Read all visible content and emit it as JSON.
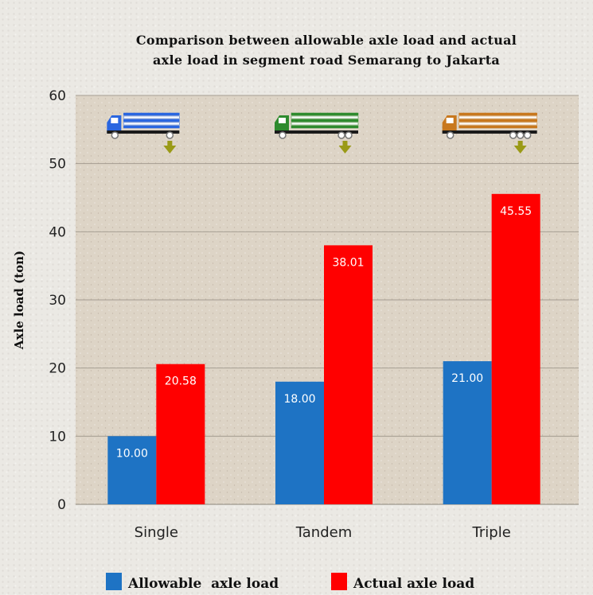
{
  "chart_data": {
    "type": "bar",
    "title": "Comparison between allowable axle load and actual\naxle load in segment road Semarang to Jakarta",
    "xlabel": "",
    "ylabel": "Axle load (ton)",
    "categories": [
      "Single",
      "Tandem",
      "Triple"
    ],
    "series": [
      {
        "name": "Allowable  axle load",
        "values": [
          10.0,
          18.0,
          21.0
        ],
        "value_labels": [
          "10.00",
          "18.00",
          "21.00"
        ],
        "color": "#1e73c4"
      },
      {
        "name": "Actual axle load",
        "values": [
          20.58,
          38.01,
          45.55
        ],
        "value_labels": [
          "20.58",
          "38.01",
          "45.55"
        ],
        "color": "#ff0000"
      }
    ],
    "ylim": [
      0,
      60
    ],
    "yticks": [
      0,
      10,
      20,
      30,
      40,
      50,
      60
    ],
    "grid": true,
    "legend_position": "bottom",
    "category_icons": [
      {
        "category": "Single",
        "icon": "single-axle-truck-icon",
        "color": "#2a66e0"
      },
      {
        "category": "Tandem",
        "icon": "tandem-axle-truck-icon",
        "color": "#2e8b2e"
      },
      {
        "category": "Triple",
        "icon": "triple-axle-truck-icon",
        "color": "#c8781e"
      }
    ],
    "plot_background": "#ddd4c6"
  }
}
